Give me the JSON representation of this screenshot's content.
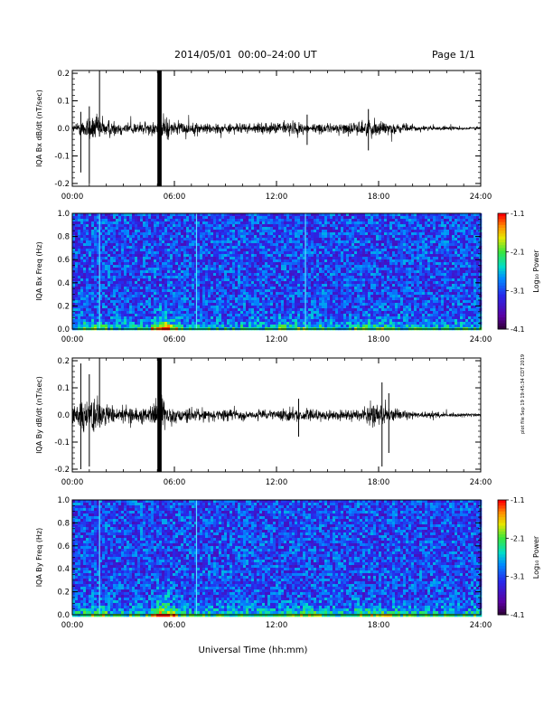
{
  "header": {
    "title": "2014/05/01  00:00–24:00 UT",
    "page": "Page 1/1"
  },
  "side_stamp": "plot file Sep 19 19:45:34 CDT 2019",
  "xlabel": "Universal Time (hh:mm)",
  "colorbar": {
    "label": "Log₁₀ Power",
    "ticks": [
      "-1.1",
      "-2.1",
      "-3.1",
      "-4.1"
    ]
  },
  "chart_data": [
    {
      "type": "line",
      "ylabel": "IQA Bx dB/dt (nT/sec)",
      "xlim": [
        0,
        24
      ],
      "ylim": [
        -0.21,
        0.21
      ],
      "xticks": [
        "00:00",
        "06:00",
        "12:00",
        "18:00",
        "24:00"
      ],
      "yticks": [
        "0.2",
        "0.1",
        "0.0",
        "-0.1",
        "-0.2"
      ],
      "envelope_x": [
        0,
        0.5,
        1,
        1.5,
        2,
        2.5,
        3,
        3.5,
        4,
        4.5,
        5,
        5.2,
        5.4,
        5.6,
        6,
        6.5,
        7,
        8,
        9,
        10,
        11,
        12,
        12.5,
        13,
        14,
        15,
        16,
        17,
        17.5,
        18,
        18.5,
        19,
        20,
        21,
        22,
        23,
        24
      ],
      "envelope_amp": [
        0.02,
        0.05,
        0.09,
        0.08,
        0.06,
        0.05,
        0.04,
        0.04,
        0.04,
        0.04,
        0.05,
        0.09,
        0.09,
        0.07,
        0.04,
        0.04,
        0.035,
        0.035,
        0.03,
        0.03,
        0.03,
        0.035,
        0.05,
        0.045,
        0.03,
        0.03,
        0.035,
        0.045,
        0.05,
        0.06,
        0.04,
        0.03,
        0.02,
        0.015,
        0.012,
        0.01,
        0.01
      ],
      "spikes": [
        [
          1.6,
          0.21,
          -0.03
        ],
        [
          5.05,
          0.21,
          -0.21
        ],
        [
          5.15,
          0.21,
          -0.21
        ],
        [
          1.0,
          0.08,
          -0.2
        ],
        [
          0.5,
          0.06,
          -0.16
        ],
        [
          13.8,
          0.05,
          -0.06
        ],
        [
          17.4,
          0.07,
          -0.08
        ]
      ]
    },
    {
      "type": "heatmap",
      "ylabel": "IQA Bx Freq (Hz)",
      "xlim": [
        0,
        24
      ],
      "ylim": [
        0,
        1.0
      ],
      "xticks": [
        "00:00",
        "06:00",
        "12:00",
        "18:00",
        "24:00"
      ],
      "yticks": [
        "1.0",
        "0.8",
        "0.6",
        "0.4",
        "0.2",
        "0.0"
      ],
      "zlim": [
        -4.1,
        -1.1
      ],
      "vertical_lines_hours": [
        1.6,
        7.3,
        13.7
      ]
    },
    {
      "type": "line",
      "ylabel": "IQA By dB/dt (nT/sec)",
      "xlim": [
        0,
        24
      ],
      "ylim": [
        -0.21,
        0.21
      ],
      "xticks": [
        "00:00",
        "06:00",
        "12:00",
        "18:00",
        "24:00"
      ],
      "yticks": [
        "0.2",
        "0.1",
        "0.0",
        "-0.1",
        "-0.2"
      ],
      "envelope_x": [
        0,
        0.5,
        1,
        1.5,
        2,
        2.5,
        3,
        3.5,
        4,
        4.5,
        5,
        5.2,
        5.4,
        5.6,
        6,
        6.5,
        7,
        8,
        9,
        10,
        11,
        12,
        12.5,
        13,
        14,
        15,
        16,
        17,
        17.5,
        18,
        18.5,
        19,
        20,
        21,
        22,
        23,
        24
      ],
      "envelope_amp": [
        0.06,
        0.1,
        0.12,
        0.1,
        0.08,
        0.06,
        0.05,
        0.05,
        0.05,
        0.05,
        0.09,
        0.12,
        0.1,
        0.07,
        0.05,
        0.045,
        0.04,
        0.035,
        0.035,
        0.03,
        0.03,
        0.035,
        0.05,
        0.045,
        0.035,
        0.03,
        0.03,
        0.04,
        0.06,
        0.08,
        0.05,
        0.035,
        0.025,
        0.02,
        0.015,
        0.012,
        0.01
      ],
      "spikes": [
        [
          0.5,
          0.19,
          -0.2
        ],
        [
          1.0,
          0.15,
          -0.19
        ],
        [
          1.6,
          0.21,
          -0.03
        ],
        [
          5.05,
          0.21,
          -0.21
        ],
        [
          5.15,
          0.21,
          -0.21
        ],
        [
          13.3,
          0.06,
          -0.08
        ],
        [
          18.2,
          0.12,
          -0.19
        ],
        [
          18.6,
          0.08,
          -0.14
        ]
      ]
    },
    {
      "type": "heatmap",
      "ylabel": "IQA By Freq (Hz)",
      "xlim": [
        0,
        24
      ],
      "ylim": [
        0,
        1.0
      ],
      "xticks": [
        "00:00",
        "06:00",
        "12:00",
        "18:00",
        "24:00"
      ],
      "yticks": [
        "1.0",
        "0.8",
        "0.6",
        "0.4",
        "0.2",
        "0.0"
      ],
      "zlim": [
        -4.1,
        -1.1
      ],
      "vertical_lines_hours": [
        1.6,
        7.3
      ]
    }
  ]
}
